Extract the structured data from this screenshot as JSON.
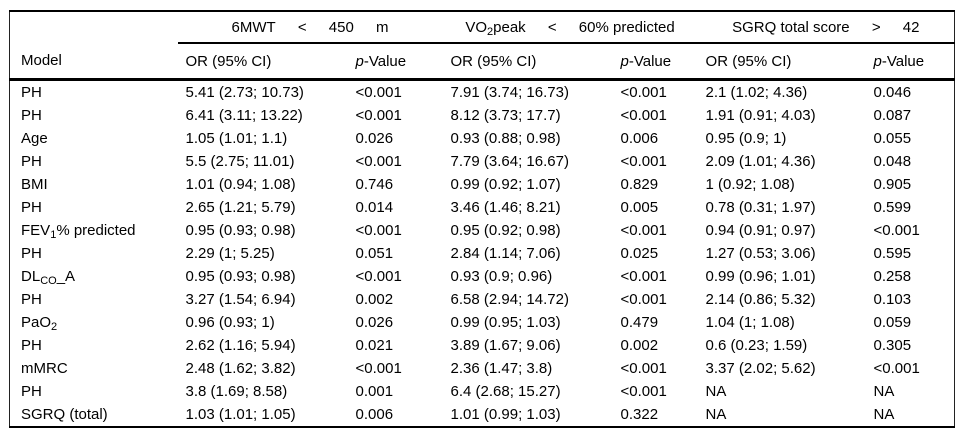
{
  "colors": {
    "background": "#ffffff",
    "text": "#000000",
    "rule": "#000000"
  },
  "table": {
    "corner_label": "Model",
    "spanners": [
      {
        "label": "6MWT < 450 m",
        "parts": [
          [
            {
              "t": "6MWT"
            }
          ],
          [
            {
              "t": "<"
            }
          ],
          [
            {
              "t": "450"
            }
          ],
          [
            {
              "t": "m"
            }
          ]
        ]
      },
      {
        "label": "VO2peak < 60% predicted",
        "parts": [
          [
            {
              "t": "VO"
            },
            {
              "s": "2"
            },
            {
              "t": "peak"
            }
          ],
          [
            {
              "t": "<"
            }
          ],
          [
            {
              "t": "60% predicted"
            }
          ]
        ]
      },
      {
        "label": "SGRQ total score > 42",
        "parts": [
          [
            {
              "t": "SGRQ total score"
            }
          ],
          [
            {
              "t": ">"
            }
          ],
          [
            {
              "t": "42"
            }
          ]
        ]
      }
    ],
    "col_headers": {
      "or": [
        {
          "t": "OR (95% CI)"
        }
      ],
      "p": [
        {
          "i": "p"
        },
        {
          "t": "-Value"
        }
      ]
    },
    "rows": [
      {
        "model": [
          {
            "t": "PH"
          }
        ],
        "cells": [
          "5.41 (2.73; 10.73)",
          "<0.001",
          "7.91 (3.74; 16.73)",
          "<0.001",
          "2.1 (1.02; 4.36)",
          "0.046"
        ]
      },
      {
        "model": [
          {
            "t": "PH"
          }
        ],
        "cells": [
          "6.41 (3.11; 13.22)",
          "<0.001",
          "8.12 (3.73; 17.7)",
          "<0.001",
          "1.91 (0.91; 4.03)",
          "0.087"
        ]
      },
      {
        "model": [
          {
            "t": "Age"
          }
        ],
        "cells": [
          "1.05 (1.01; 1.1)",
          "0.026",
          "0.93 (0.88; 0.98)",
          "0.006",
          "0.95 (0.9; 1)",
          "0.055"
        ]
      },
      {
        "model": [
          {
            "t": "PH"
          }
        ],
        "cells": [
          "5.5 (2.75; 11.01)",
          "<0.001",
          "7.79 (3.64; 16.67)",
          "<0.001",
          "2.09 (1.01; 4.36)",
          "0.048"
        ]
      },
      {
        "model": [
          {
            "t": "BMI"
          }
        ],
        "cells": [
          "1.01 (0.94; 1.08)",
          "0.746",
          "0.99 (0.92; 1.07)",
          "0.829",
          "1 (0.92; 1.08)",
          "0.905"
        ]
      },
      {
        "model": [
          {
            "t": "PH"
          }
        ],
        "cells": [
          "2.65 (1.21; 5.79)",
          "0.014",
          "3.46 (1.46; 8.21)",
          "0.005",
          "0.78 (0.31; 1.97)",
          "0.599"
        ]
      },
      {
        "model": [
          {
            "t": "FEV"
          },
          {
            "s": "1"
          },
          {
            "t": "% predicted"
          }
        ],
        "cells": [
          "0.95 (0.93; 0.98)",
          "<0.001",
          "0.95 (0.92; 0.98)",
          "<0.001",
          "0.94 (0.91; 0.97)",
          "<0.001"
        ]
      },
      {
        "model": [
          {
            "t": "PH"
          }
        ],
        "cells": [
          "2.29 (1; 5.25)",
          "0.051",
          "2.84 (1.14; 7.06)",
          "0.025",
          "1.27 (0.53; 3.06)",
          "0.595"
        ]
      },
      {
        "model": [
          {
            "t": "DL"
          },
          {
            "s": "CO"
          },
          {
            "t": "_A"
          }
        ],
        "cells": [
          "0.95 (0.93; 0.98)",
          "<0.001",
          "0.93 (0.9; 0.96)",
          "<0.001",
          "0.99 (0.96; 1.01)",
          "0.258"
        ]
      },
      {
        "model": [
          {
            "t": "PH"
          }
        ],
        "cells": [
          "3.27 (1.54; 6.94)",
          "0.002",
          "6.58 (2.94; 14.72)",
          "<0.001",
          "2.14 (0.86; 5.32)",
          "0.103"
        ]
      },
      {
        "model": [
          {
            "t": "PaO"
          },
          {
            "s": "2"
          }
        ],
        "cells": [
          "0.96 (0.93; 1)",
          "0.026",
          "0.99 (0.95; 1.03)",
          "0.479",
          "1.04 (1; 1.08)",
          "0.059"
        ]
      },
      {
        "model": [
          {
            "t": "PH"
          }
        ],
        "cells": [
          "2.62 (1.16; 5.94)",
          "0.021",
          "3.89 (1.67; 9.06)",
          "0.002",
          "0.6 (0.23; 1.59)",
          "0.305"
        ]
      },
      {
        "model": [
          {
            "t": "mMRC"
          }
        ],
        "cells": [
          "2.48 (1.62; 3.82)",
          "<0.001",
          "2.36 (1.47; 3.8)",
          "<0.001",
          "3.37 (2.02; 5.62)",
          "<0.001"
        ]
      },
      {
        "model": [
          {
            "t": "PH"
          }
        ],
        "cells": [
          "3.8 (1.69; 8.58)",
          "0.001",
          "6.4 (2.68; 15.27)",
          "<0.001",
          "NA",
          "NA"
        ]
      },
      {
        "model": [
          {
            "t": "SGRQ (total)"
          }
        ],
        "cells": [
          "1.03 (1.01; 1.05)",
          "0.006",
          "1.01 (0.99; 1.03)",
          "0.322",
          "NA",
          "NA"
        ]
      }
    ]
  }
}
